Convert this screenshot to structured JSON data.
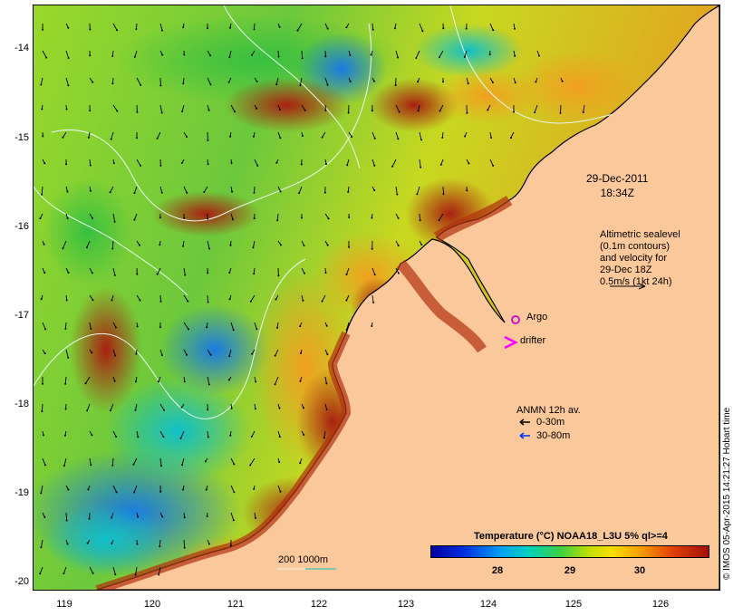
{
  "map": {
    "date_line1": "29-Dec-2011",
    "date_line2": "18:34Z",
    "altimetry_lines": [
      "Altimetric sealevel",
      "(0.1m contours)",
      "and velocity for",
      "29-Dec 18Z",
      "0.5m/s (1kt 24h)"
    ],
    "argo_label": "Argo",
    "drifter_label": "drifter",
    "anmn_title": "ANMN 12h av.",
    "anmn_shallow": "0-30m",
    "anmn_deep": "30-80m",
    "depth_contours_label": "200  1000m",
    "colorbar_title": "Temperature (°C) NOAA18_L3U 5% ql>=4",
    "colorbar_ticks": [
      "28",
      "29",
      "30"
    ],
    "credit": "© IMOS 05-Apr-2015 14:21:27 Hobart time",
    "lat_ticks": [
      "-14",
      "-15",
      "-16",
      "-17",
      "-18",
      "-19",
      "-20"
    ],
    "lon_ticks": [
      "119",
      "120",
      "121",
      "122",
      "123",
      "124",
      "125",
      "126"
    ],
    "colors": {
      "land": "#fbc89b",
      "argo_marker": "#d000d0",
      "drifter_marker": "#ff00ff",
      "anmn_deep_arrow": "#0030ff",
      "contour": "#e8f8f0"
    }
  }
}
